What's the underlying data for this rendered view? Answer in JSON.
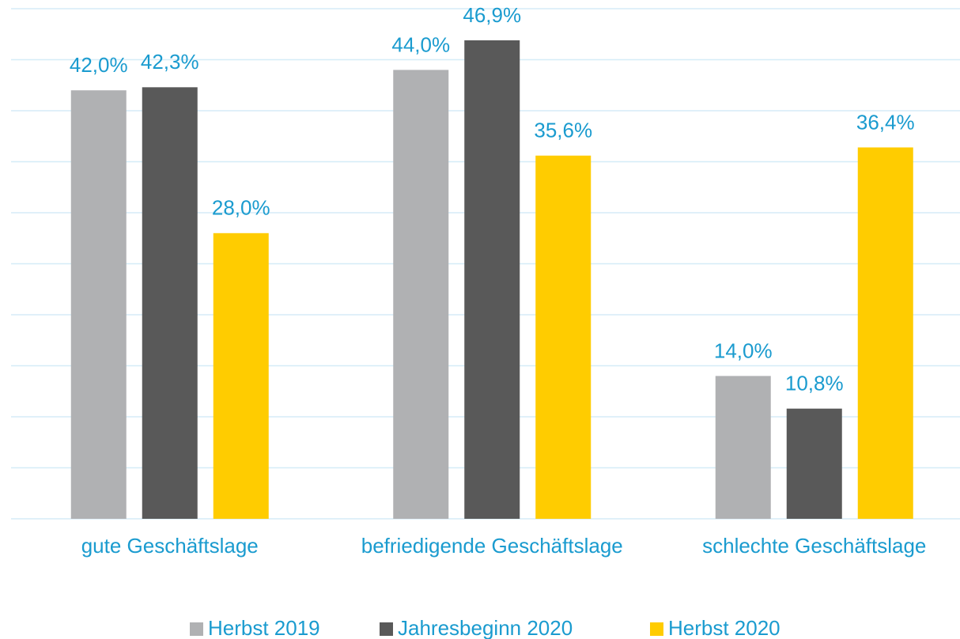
{
  "chart_data": {
    "type": "bar",
    "categories": [
      "gute Geschäftslage",
      "befriedigende Geschäftslage",
      "schlechte Geschäftslage"
    ],
    "series": [
      {
        "name": "Herbst 2019",
        "color": "#b0b1b3",
        "values": [
          42.0,
          44.0,
          14.0
        ],
        "value_labels": [
          "42,0%",
          "44,0%",
          "14,0%"
        ]
      },
      {
        "name": "Jahresbeginn 2020",
        "color": "#595959",
        "values": [
          42.3,
          46.9,
          10.8
        ],
        "value_labels": [
          "42,3%",
          "46,9%",
          "10,8%"
        ]
      },
      {
        "name": "Herbst 2020",
        "color": "#ffcc00",
        "values": [
          28.0,
          35.6,
          36.4
        ],
        "value_labels": [
          "28,0%",
          "35,6%",
          "36,4%"
        ]
      }
    ],
    "ylim": [
      0,
      50
    ],
    "yticks": [
      0,
      5,
      10,
      15,
      20,
      25,
      30,
      35,
      40,
      45,
      50
    ],
    "grid": true,
    "legend": "bottom"
  }
}
